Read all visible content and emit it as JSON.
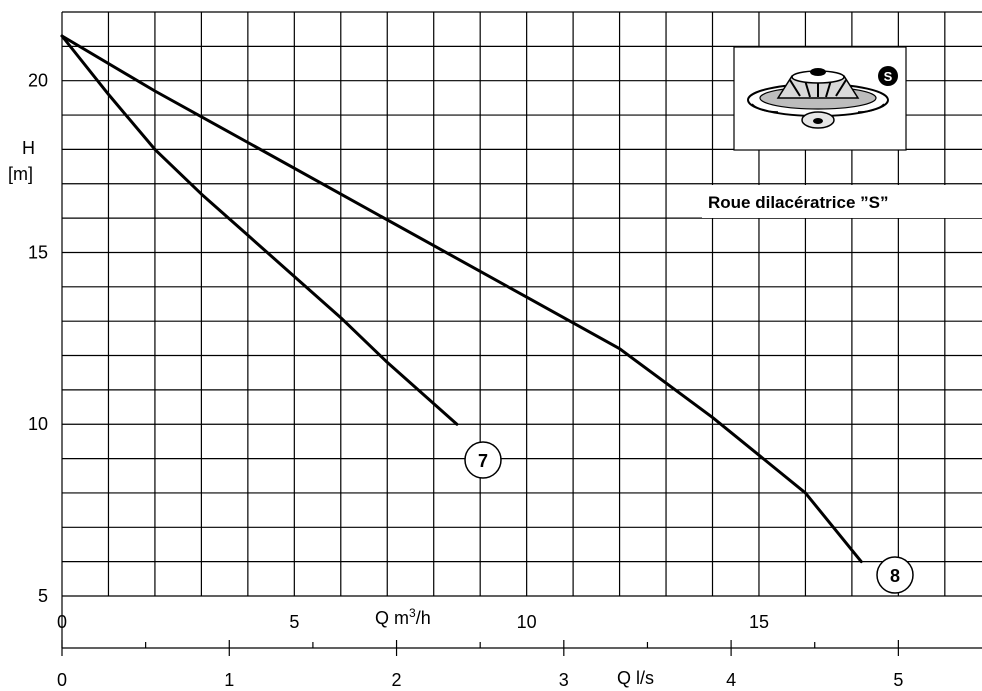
{
  "chart_data": {
    "type": "line",
    "title": "",
    "caption": "Roue dilacératrice ”S”",
    "badge": "S",
    "ylabel_top": "H",
    "ylabel_unit": "[m]",
    "xlabel_m3h": "Q m",
    "xlabel_m3h_sup": "3",
    "xlabel_m3h_tail": "/h",
    "xlabel_ls": "Q l/s",
    "ylim": [
      5,
      22
    ],
    "xlim_m3h": [
      0,
      19.8
    ],
    "xlim_ls": [
      0,
      5.5
    ],
    "y_ticks": [
      "5",
      "10",
      "15",
      "20"
    ],
    "x_ticks_m3h": [
      "0",
      "5",
      "10",
      "15"
    ],
    "x_ticks_ls": [
      "0",
      "1",
      "2",
      "3",
      "4",
      "5"
    ],
    "grid": true,
    "series": [
      {
        "name": "7",
        "x": [
          0,
          1,
          2,
          3,
          4,
          5,
          6,
          7,
          8.5
        ],
        "y": [
          21.3,
          19.6,
          18.0,
          16.7,
          15.5,
          14.3,
          13.1,
          11.8,
          10.0
        ]
      },
      {
        "name": "8",
        "x": [
          0,
          2,
          4,
          6,
          8,
          10,
          12,
          14,
          16,
          17.2
        ],
        "y": [
          21.3,
          19.7,
          18.2,
          16.7,
          15.2,
          13.7,
          12.2,
          10.2,
          8.0,
          6.0
        ]
      }
    ]
  }
}
